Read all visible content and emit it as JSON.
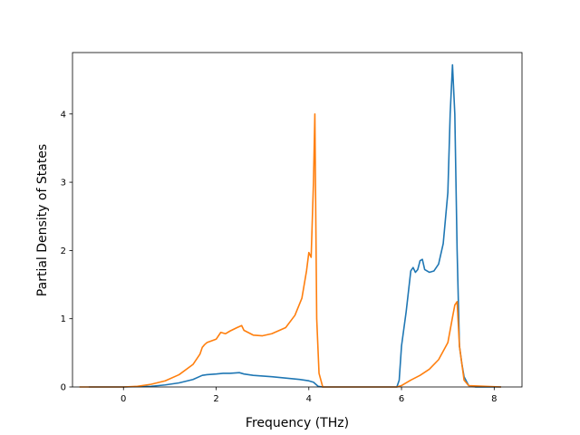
{
  "chart_data": {
    "type": "line",
    "title": "",
    "xlabel": "Frequency (THz)",
    "ylabel": "Partial Density of States",
    "xlim": [
      -1.1,
      8.6
    ],
    "ylim": [
      0,
      4.9
    ],
    "xticks": [
      0,
      2,
      4,
      6,
      8
    ],
    "yticks": [
      0,
      1,
      2,
      3,
      4
    ],
    "grid": false,
    "legend": "none",
    "series": [
      {
        "color": "#1f77b4",
        "x": [
          -0.75,
          0.0,
          0.3,
          0.6,
          0.9,
          1.2,
          1.5,
          1.7,
          1.8,
          2.0,
          2.15,
          2.3,
          2.5,
          2.6,
          2.8,
          3.0,
          3.2,
          3.5,
          3.8,
          4.0,
          4.1,
          4.15,
          4.2,
          4.3,
          5.9,
          5.95,
          6.0,
          6.1,
          6.2,
          6.25,
          6.3,
          6.35,
          6.4,
          6.45,
          6.5,
          6.6,
          6.7,
          6.8,
          6.9,
          7.0,
          7.05,
          7.1,
          7.15,
          7.2,
          7.25,
          7.3,
          7.35,
          7.45,
          7.6,
          8.15
        ],
        "y": [
          0,
          0,
          0.005,
          0.01,
          0.03,
          0.06,
          0.11,
          0.17,
          0.18,
          0.19,
          0.2,
          0.2,
          0.21,
          0.19,
          0.17,
          0.16,
          0.15,
          0.13,
          0.11,
          0.09,
          0.07,
          0.04,
          0.01,
          0,
          0,
          0.1,
          0.6,
          1.1,
          1.7,
          1.75,
          1.68,
          1.72,
          1.85,
          1.87,
          1.72,
          1.68,
          1.7,
          1.8,
          2.1,
          2.85,
          4.0,
          4.72,
          4.0,
          2.0,
          0.6,
          0.35,
          0.15,
          0.02,
          0,
          0
        ]
      },
      {
        "color": "#ff7f0e",
        "x": [
          -0.95,
          0.0,
          0.3,
          0.6,
          0.9,
          1.2,
          1.5,
          1.65,
          1.7,
          1.75,
          1.8,
          2.0,
          2.1,
          2.2,
          2.3,
          2.45,
          2.55,
          2.6,
          2.8,
          3.0,
          3.2,
          3.5,
          3.7,
          3.85,
          3.95,
          4.0,
          4.05,
          4.1,
          4.13,
          4.17,
          4.22,
          4.3,
          5.9,
          6.0,
          6.2,
          6.4,
          6.6,
          6.8,
          7.0,
          7.1,
          7.15,
          7.2,
          7.25,
          7.35,
          7.45,
          8.15
        ],
        "y": [
          0,
          0,
          0.01,
          0.04,
          0.09,
          0.18,
          0.33,
          0.48,
          0.58,
          0.62,
          0.65,
          0.7,
          0.8,
          0.78,
          0.82,
          0.87,
          0.9,
          0.83,
          0.76,
          0.75,
          0.78,
          0.87,
          1.05,
          1.3,
          1.7,
          1.97,
          1.9,
          3.0,
          4.0,
          1.0,
          0.2,
          0,
          0,
          0.02,
          0.1,
          0.17,
          0.26,
          0.4,
          0.65,
          1.02,
          1.2,
          1.25,
          0.6,
          0.1,
          0.02,
          0
        ]
      }
    ]
  }
}
